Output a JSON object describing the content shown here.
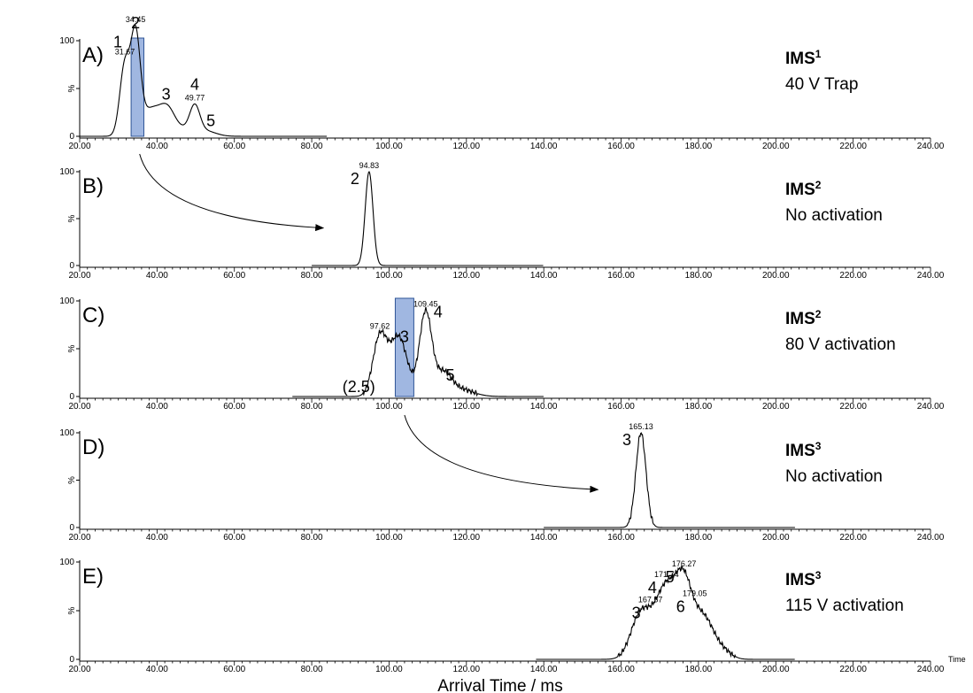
{
  "figure": {
    "xaxis_title": "Arrival Time / ms",
    "x_unit_label": "Time",
    "y_tick_labels": [
      "100",
      "%",
      "0"
    ]
  },
  "chart_data": [
    {
      "type": "line",
      "panel": "A)",
      "title_main": "IMS",
      "title_sup": "1",
      "title_sub": "40 V Trap",
      "xlim": [
        20,
        240
      ],
      "ylim": [
        0,
        100
      ],
      "xticks": [
        "20.00",
        "40.00",
        "60.00",
        "80.00",
        "100.00",
        "120.00",
        "140.00",
        "160.00",
        "180.00",
        "200.00",
        "220.00",
        "240.00"
      ],
      "baseline_end": 84,
      "peaks": [
        {
          "mu": 31.67,
          "sigma": 1.3,
          "amp": 73
        },
        {
          "mu": 34.45,
          "sigma": 1.2,
          "amp": 97
        },
        {
          "mu": 38.5,
          "sigma": 3.0,
          "amp": 28
        },
        {
          "mu": 42.8,
          "sigma": 1.8,
          "amp": 17
        },
        {
          "mu": 49.77,
          "sigma": 1.3,
          "amp": 27
        },
        {
          "mu": 46.0,
          "sigma": 4.0,
          "amp": 8
        },
        {
          "mu": 53.0,
          "sigma": 2.5,
          "amp": 4
        }
      ],
      "highlight": [
        33.3,
        36.6
      ],
      "annotations": [
        {
          "x": 31.67,
          "value": "31.67",
          "num": "1"
        },
        {
          "x": 34.45,
          "value": "34.45",
          "num": "2"
        },
        {
          "x": 49.77,
          "value": "49.77",
          "num": "4"
        },
        {
          "x": 42.8,
          "value": "",
          "num": "3"
        },
        {
          "x": 53.0,
          "value": "",
          "num": "5"
        }
      ]
    },
    {
      "type": "line",
      "panel": "B)",
      "title_main": "IMS",
      "title_sup": "2",
      "title_sub": "No activation",
      "xlim": [
        20,
        240
      ],
      "ylim": [
        0,
        100
      ],
      "xticks": [
        "20.00",
        "40.00",
        "60.00",
        "80.00",
        "100.00",
        "120.00",
        "140.00",
        "160.00",
        "180.00",
        "200.00",
        "220.00",
        "240.00"
      ],
      "baseline_start": 80,
      "baseline_end": 140,
      "peaks": [
        {
          "mu": 94.83,
          "sigma": 1.0,
          "amp": 100
        }
      ],
      "annotations": [
        {
          "x": 94.83,
          "value": "94.83",
          "num": "2"
        }
      ]
    },
    {
      "type": "line",
      "panel": "C)",
      "title_main": "IMS",
      "title_sup": "2",
      "title_sub": "80 V activation",
      "xlim": [
        20,
        240
      ],
      "ylim": [
        0,
        100
      ],
      "xticks": [
        "20.00",
        "40.00",
        "60.00",
        "80.00",
        "100.00",
        "120.00",
        "140.00",
        "160.00",
        "180.00",
        "200.00",
        "220.00",
        "240.00"
      ],
      "baseline_start": 75,
      "baseline_end": 140,
      "peaks": [
        {
          "mu": 97.62,
          "sigma": 1.8,
          "amp": 62
        },
        {
          "mu": 102.5,
          "sigma": 2.2,
          "amp": 62
        },
        {
          "mu": 109.45,
          "sigma": 1.6,
          "amp": 88
        },
        {
          "mu": 114.0,
          "sigma": 2.0,
          "amp": 22
        },
        {
          "mu": 118.0,
          "sigma": 3.5,
          "amp": 8
        }
      ],
      "highlight": [
        101.6,
        106.4
      ],
      "annotations": [
        {
          "x": 97.62,
          "value": "97.62",
          "num": ""
        },
        {
          "x": 109.45,
          "value": "109.45",
          "num": "4"
        },
        {
          "x": 104.0,
          "value": "",
          "num": "3"
        },
        {
          "x": 114.0,
          "value": "",
          "num": "5"
        },
        {
          "x": 94.0,
          "value": "",
          "num": "(2.5)"
        }
      ]
    },
    {
      "type": "line",
      "panel": "D)",
      "title_main": "IMS",
      "title_sup": "3",
      "title_sub": "No activation",
      "xlim": [
        20,
        240
      ],
      "ylim": [
        0,
        100
      ],
      "xticks": [
        "20.00",
        "40.00",
        "60.00",
        "80.00",
        "100.00",
        "120.00",
        "140.00",
        "160.00",
        "180.00",
        "200.00",
        "220.00",
        "240.00"
      ],
      "baseline_start": 140,
      "baseline_end": 205,
      "peaks": [
        {
          "mu": 165.13,
          "sigma": 1.3,
          "amp": 100
        }
      ],
      "annotations": [
        {
          "x": 165.13,
          "value": "165.13",
          "num": "3"
        }
      ]
    },
    {
      "type": "line",
      "panel": "E)",
      "title_main": "IMS",
      "title_sup": "3",
      "title_sub": "115 V activation",
      "xlim": [
        20,
        240
      ],
      "ylim": [
        0,
        100
      ],
      "xticks": [
        "20.00",
        "40.00",
        "60.00",
        "80.00",
        "100.00",
        "120.00",
        "140.00",
        "160.00",
        "180.00",
        "200.00",
        "220.00",
        "240.00"
      ],
      "baseline_start": 138,
      "baseline_end": 205,
      "peaks": [
        {
          "mu": 165.0,
          "sigma": 2.5,
          "amp": 45
        },
        {
          "mu": 171.74,
          "sigma": 3.0,
          "amp": 75
        },
        {
          "mu": 176.27,
          "sigma": 2.0,
          "amp": 55
        },
        {
          "mu": 181.0,
          "sigma": 3.0,
          "amp": 45
        },
        {
          "mu": 187.0,
          "sigma": 2.0,
          "amp": 5
        }
      ],
      "annotations": [
        {
          "x": 167.57,
          "value": "167.57",
          "num": "3"
        },
        {
          "x": 171.74,
          "value": "171.74",
          "num": "4"
        },
        {
          "x": 176.27,
          "value": "176.27",
          "num": "5"
        },
        {
          "x": 179.05,
          "value": "179.05",
          "num": "6"
        }
      ]
    }
  ],
  "arrows": [
    {
      "from_panel": 0,
      "from_x": 35.5,
      "to_panel": 1,
      "to_x": 83
    },
    {
      "from_panel": 2,
      "from_x": 104,
      "to_panel": 3,
      "to_x": 154
    }
  ]
}
